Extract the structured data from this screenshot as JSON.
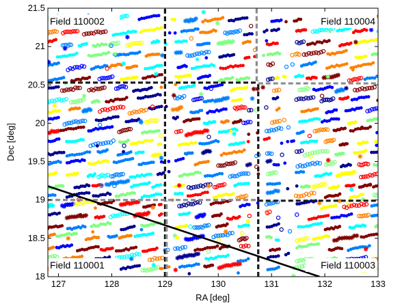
{
  "chart_data": {
    "type": "scatter",
    "title": "",
    "xlabel": "RA [deg]",
    "ylabel": "Dec [deg]",
    "xlim": [
      126.8,
      133
    ],
    "ylim": [
      18,
      21.5
    ],
    "xticks": [
      "127",
      "128",
      "129",
      "130",
      "131",
      "132",
      "133"
    ],
    "yticks": [
      "18",
      "18.5",
      "19",
      "19.5",
      "20",
      "20.5",
      "21",
      "21.5"
    ],
    "grid": false,
    "field_labels": [
      {
        "text": "Field 110002",
        "position": "top-left"
      },
      {
        "text": "Field 110004",
        "position": "top-right"
      },
      {
        "text": "Field 110001",
        "position": "bottom-left"
      },
      {
        "text": "Field 110003",
        "position": "bottom-right"
      }
    ],
    "boundaries": [
      {
        "name": "black-vertical-1",
        "style": "black-dashed",
        "points": [
          [
            129.0,
            18.0
          ],
          [
            129.0,
            21.5
          ]
        ]
      },
      {
        "name": "black-vertical-2",
        "style": "black-dashed",
        "points": [
          [
            130.75,
            18.0
          ],
          [
            130.75,
            20.55
          ]
        ]
      },
      {
        "name": "black-horizontal-1",
        "style": "black-dashed",
        "points": [
          [
            126.8,
            20.53
          ],
          [
            130.75,
            20.53
          ]
        ]
      },
      {
        "name": "black-horizontal-2",
        "style": "black-dashed",
        "points": [
          [
            130.75,
            18.99
          ],
          [
            133.0,
            18.99
          ]
        ]
      },
      {
        "name": "gray-vertical-1",
        "style": "gray-dashed",
        "points": [
          [
            130.72,
            20.55
          ],
          [
            130.72,
            21.5
          ]
        ]
      },
      {
        "name": "gray-vertical-2",
        "style": "gray-dashed",
        "points": [
          [
            129.03,
            18.0
          ],
          [
            129.03,
            18.99
          ]
        ]
      },
      {
        "name": "gray-horizontal-1",
        "style": "gray-dashed",
        "points": [
          [
            126.8,
            19.0
          ],
          [
            130.75,
            19.0
          ]
        ]
      },
      {
        "name": "gray-horizontal-2",
        "style": "gray-dashed",
        "points": [
          [
            130.75,
            20.52
          ],
          [
            133.0,
            20.52
          ]
        ]
      },
      {
        "name": "sky-limit",
        "style": "black-solid",
        "points": [
          [
            126.8,
            19.18
          ],
          [
            131.9,
            18.0
          ]
        ]
      }
    ],
    "streak_rows_dec": [
      21.34,
      21.18,
      21.03,
      20.88,
      20.73,
      20.58,
      20.44,
      20.3,
      20.16,
      20.02,
      19.88,
      19.74,
      19.6,
      19.46,
      19.32,
      19.18,
      19.05,
      18.92,
      18.78,
      18.64,
      18.5,
      18.36,
      18.22,
      18.1
    ],
    "streak_gaps_ra": [
      [
        128.95,
        129.18
      ],
      [
        130.6,
        130.9
      ],
      [
        131.15,
        131.45
      ]
    ],
    "colormap": [
      "#00008f",
      "#0000ff",
      "#0080ff",
      "#00ffff",
      "#80ff80",
      "#ffff00",
      "#ff8000",
      "#ff0000",
      "#800000"
    ],
    "marker_kinds": [
      "filled-dot",
      "open-circle",
      "star"
    ]
  }
}
